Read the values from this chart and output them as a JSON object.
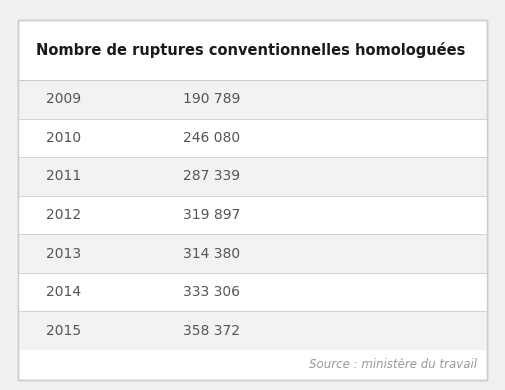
{
  "title": "Nombre de ruptures conventionnelles homologuées",
  "source": "Source : ministère du travail",
  "rows": [
    {
      "year": "2009",
      "value": "190 789"
    },
    {
      "year": "2010",
      "value": "246 080"
    },
    {
      "year": "2011",
      "value": "287 339"
    },
    {
      "year": "2012",
      "value": "319 897"
    },
    {
      "year": "2013",
      "value": "314 380"
    },
    {
      "year": "2014",
      "value": "333 306"
    },
    {
      "year": "2015",
      "value": "358 372"
    }
  ],
  "bg_color": "#f0f0f0",
  "table_bg": "#ffffff",
  "row_odd_bg": "#f2f2f2",
  "row_even_bg": "#ffffff",
  "border_color": "#cccccc",
  "line_color": "#cccccc",
  "title_color": "#1a1a1a",
  "year_color": "#555555",
  "value_color": "#555555",
  "source_color": "#999999",
  "title_fontsize": 10.5,
  "row_fontsize": 10.0,
  "source_fontsize": 8.5
}
